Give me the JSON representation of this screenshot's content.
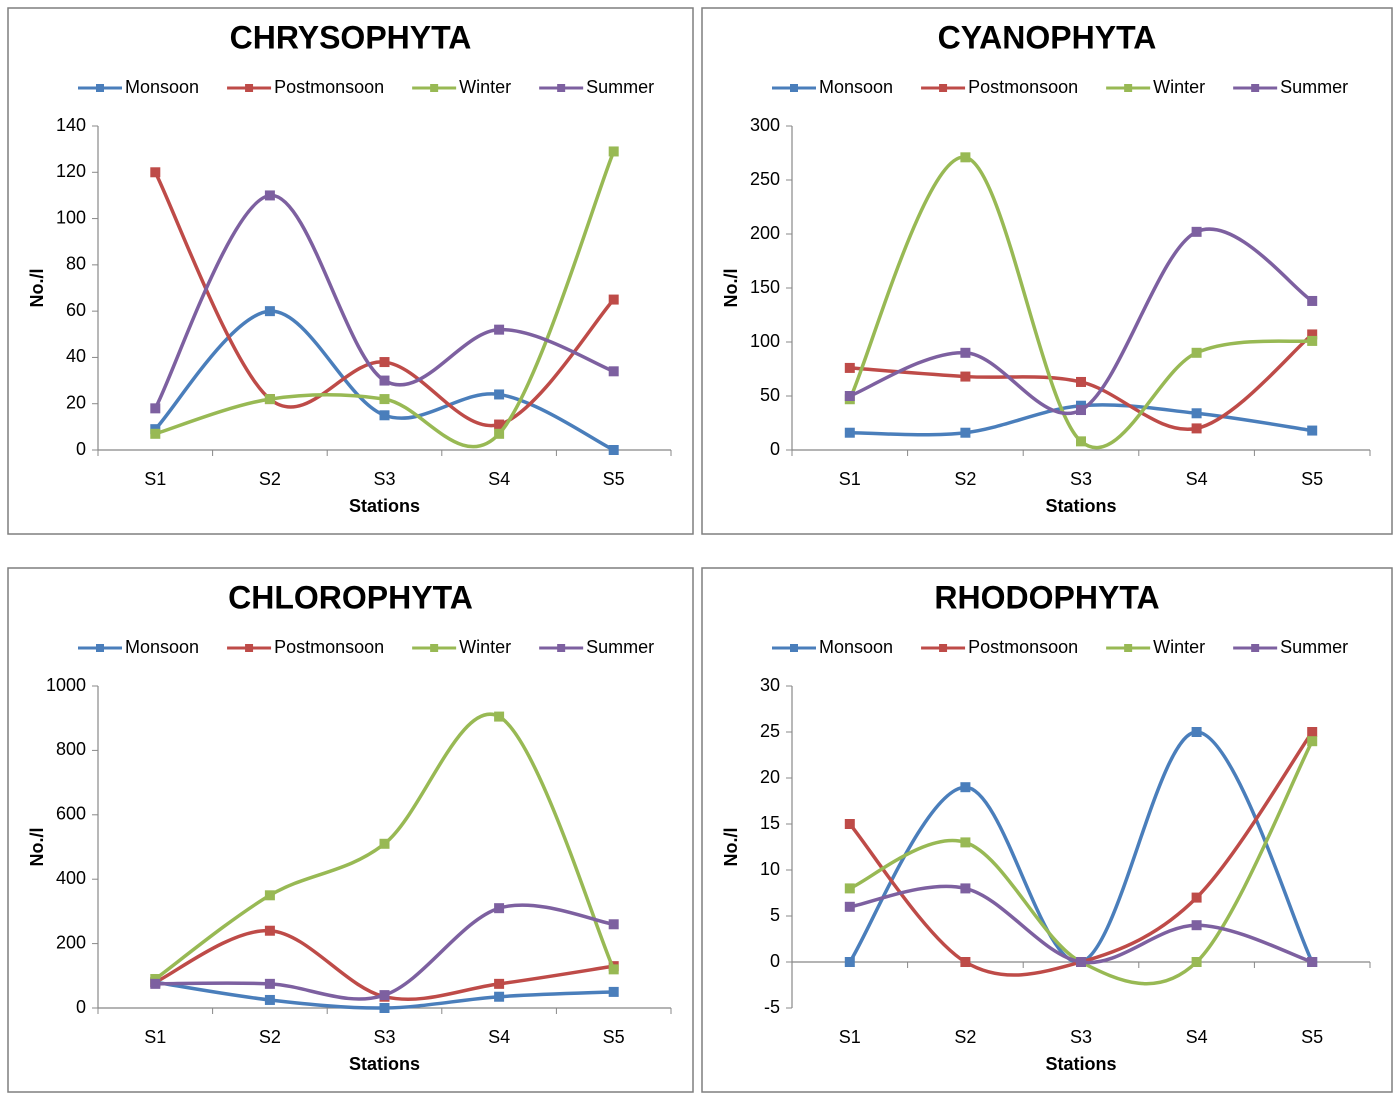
{
  "chart_data": [
    {
      "type": "line",
      "title": "CHRYSOPHYTA",
      "x_label": "Stations",
      "y_label": "No./l",
      "categories": [
        "S1",
        "S2",
        "S3",
        "S4",
        "S5"
      ],
      "series": [
        {
          "name": "Monsoon",
          "color": "#4a7ebb",
          "values": [
            9,
            60,
            15,
            24,
            0
          ]
        },
        {
          "name": "Postmonsoon",
          "color": "#be4b48",
          "values": [
            120,
            22,
            38,
            11,
            65
          ]
        },
        {
          "name": "Winter",
          "color": "#98b954",
          "values": [
            7,
            22,
            22,
            7,
            129
          ]
        },
        {
          "name": "Summer",
          "color": "#7d60a0",
          "values": [
            18,
            110,
            30,
            52,
            34
          ]
        }
      ],
      "ylim": [
        0,
        140
      ],
      "yticks": [
        0,
        20,
        40,
        60,
        80,
        100,
        120,
        140
      ],
      "smooth": true,
      "legend": "top"
    },
    {
      "type": "line",
      "title": "CYANOPHYTA",
      "x_label": "Stations",
      "y_label": "No./l",
      "categories": [
        "S1",
        "S2",
        "S3",
        "S4",
        "S5"
      ],
      "series": [
        {
          "name": "Monsoon",
          "color": "#4a7ebb",
          "values": [
            16,
            16,
            41,
            34,
            18
          ]
        },
        {
          "name": "Postmonsoon",
          "color": "#be4b48",
          "values": [
            76,
            68,
            63,
            20,
            107
          ]
        },
        {
          "name": "Winter",
          "color": "#98b954",
          "values": [
            47,
            271,
            8,
            90,
            101
          ]
        },
        {
          "name": "Summer",
          "color": "#7d60a0",
          "values": [
            50,
            90,
            37,
            202,
            138
          ]
        }
      ],
      "ylim": [
        0,
        300
      ],
      "yticks": [
        0,
        50,
        100,
        150,
        200,
        250,
        300
      ],
      "smooth": true,
      "legend": "top"
    },
    {
      "type": "line",
      "title": "CHLOROPHYTA",
      "x_label": "Stations",
      "y_label": "No./l",
      "categories": [
        "S1",
        "S2",
        "S3",
        "S4",
        "S5"
      ],
      "series": [
        {
          "name": "Monsoon",
          "color": "#4a7ebb",
          "values": [
            80,
            25,
            0,
            35,
            50
          ]
        },
        {
          "name": "Postmonsoon",
          "color": "#be4b48",
          "values": [
            80,
            240,
            35,
            75,
            130
          ]
        },
        {
          "name": "Winter",
          "color": "#98b954",
          "values": [
            90,
            350,
            510,
            905,
            120
          ]
        },
        {
          "name": "Summer",
          "color": "#7d60a0",
          "values": [
            75,
            75,
            40,
            310,
            260
          ]
        }
      ],
      "ylim": [
        0,
        1000
      ],
      "yticks": [
        0,
        200,
        400,
        600,
        800,
        1000
      ],
      "smooth": true,
      "legend": "top"
    },
    {
      "type": "line",
      "title": "RHODOPHYTA",
      "x_label": "Stations",
      "y_label": "No./l",
      "categories": [
        "S1",
        "S2",
        "S3",
        "S4",
        "S5"
      ],
      "series": [
        {
          "name": "Monsoon",
          "color": "#4a7ebb",
          "values": [
            0,
            19,
            0,
            25,
            0
          ]
        },
        {
          "name": "Postmonsoon",
          "color": "#be4b48",
          "values": [
            15,
            0,
            0,
            7,
            25
          ]
        },
        {
          "name": "Winter",
          "color": "#98b954",
          "values": [
            8,
            13,
            0,
            0,
            24
          ]
        },
        {
          "name": "Summer",
          "color": "#7d60a0",
          "values": [
            6,
            8,
            0,
            4,
            0
          ]
        }
      ],
      "ylim": [
        -5,
        30
      ],
      "yticks": [
        -5,
        0,
        5,
        10,
        15,
        20,
        25,
        30
      ],
      "smooth": true,
      "legend": "top"
    }
  ]
}
